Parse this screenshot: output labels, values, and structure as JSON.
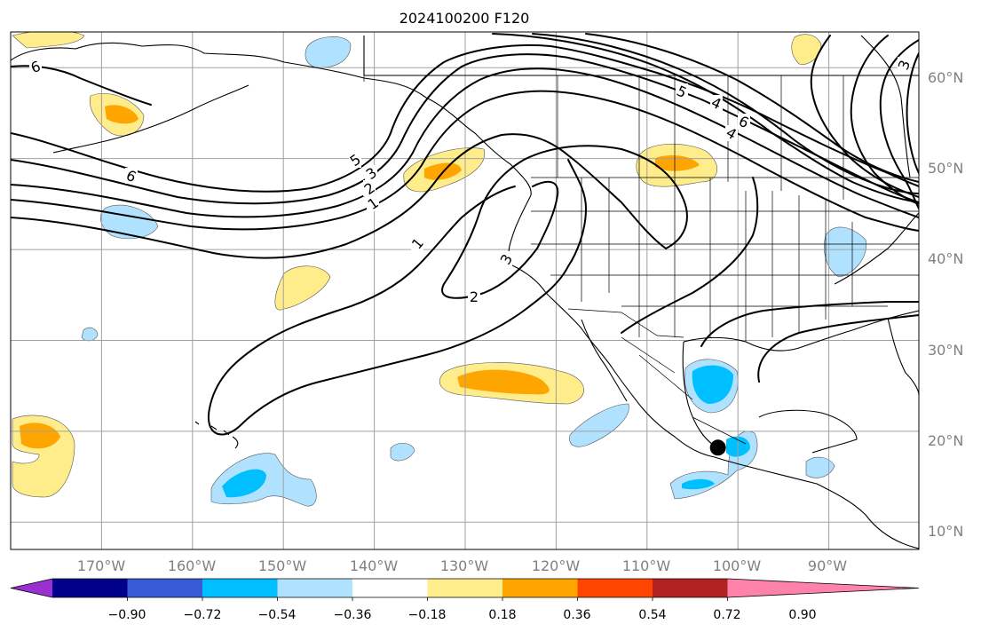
{
  "title": "2024100200 F120",
  "lon_ticks": [
    "170°W",
    "160°W",
    "150°W",
    "140°W",
    "130°W",
    "120°W",
    "110°W",
    "100°W",
    "90°W"
  ],
  "lat_ticks": [
    "60°N",
    "50°N",
    "40°N",
    "30°N",
    "20°N",
    "10°N"
  ],
  "colorbar": {
    "ticks": [
      "−0.90",
      "−0.72",
      "−0.54",
      "−0.36",
      "−0.18",
      "0.18",
      "0.36",
      "0.54",
      "0.72",
      "0.90"
    ],
    "colors": [
      "#9b30d0",
      "#00008b",
      "#3a5bd6",
      "#00bfff",
      "#b0e2ff",
      "#ffffff",
      "#ffec8b",
      "#ffa500",
      "#ff4500",
      "#b22222",
      "#ff82ab"
    ]
  },
  "contour_labels": [
    "6",
    "5",
    "3",
    "2",
    "1",
    "1",
    "2",
    "3",
    "5",
    "4",
    "6",
    "4",
    "3",
    "6"
  ],
  "marker": {
    "lon": -102.2,
    "lat": 18.2,
    "color": "#000000"
  }
}
